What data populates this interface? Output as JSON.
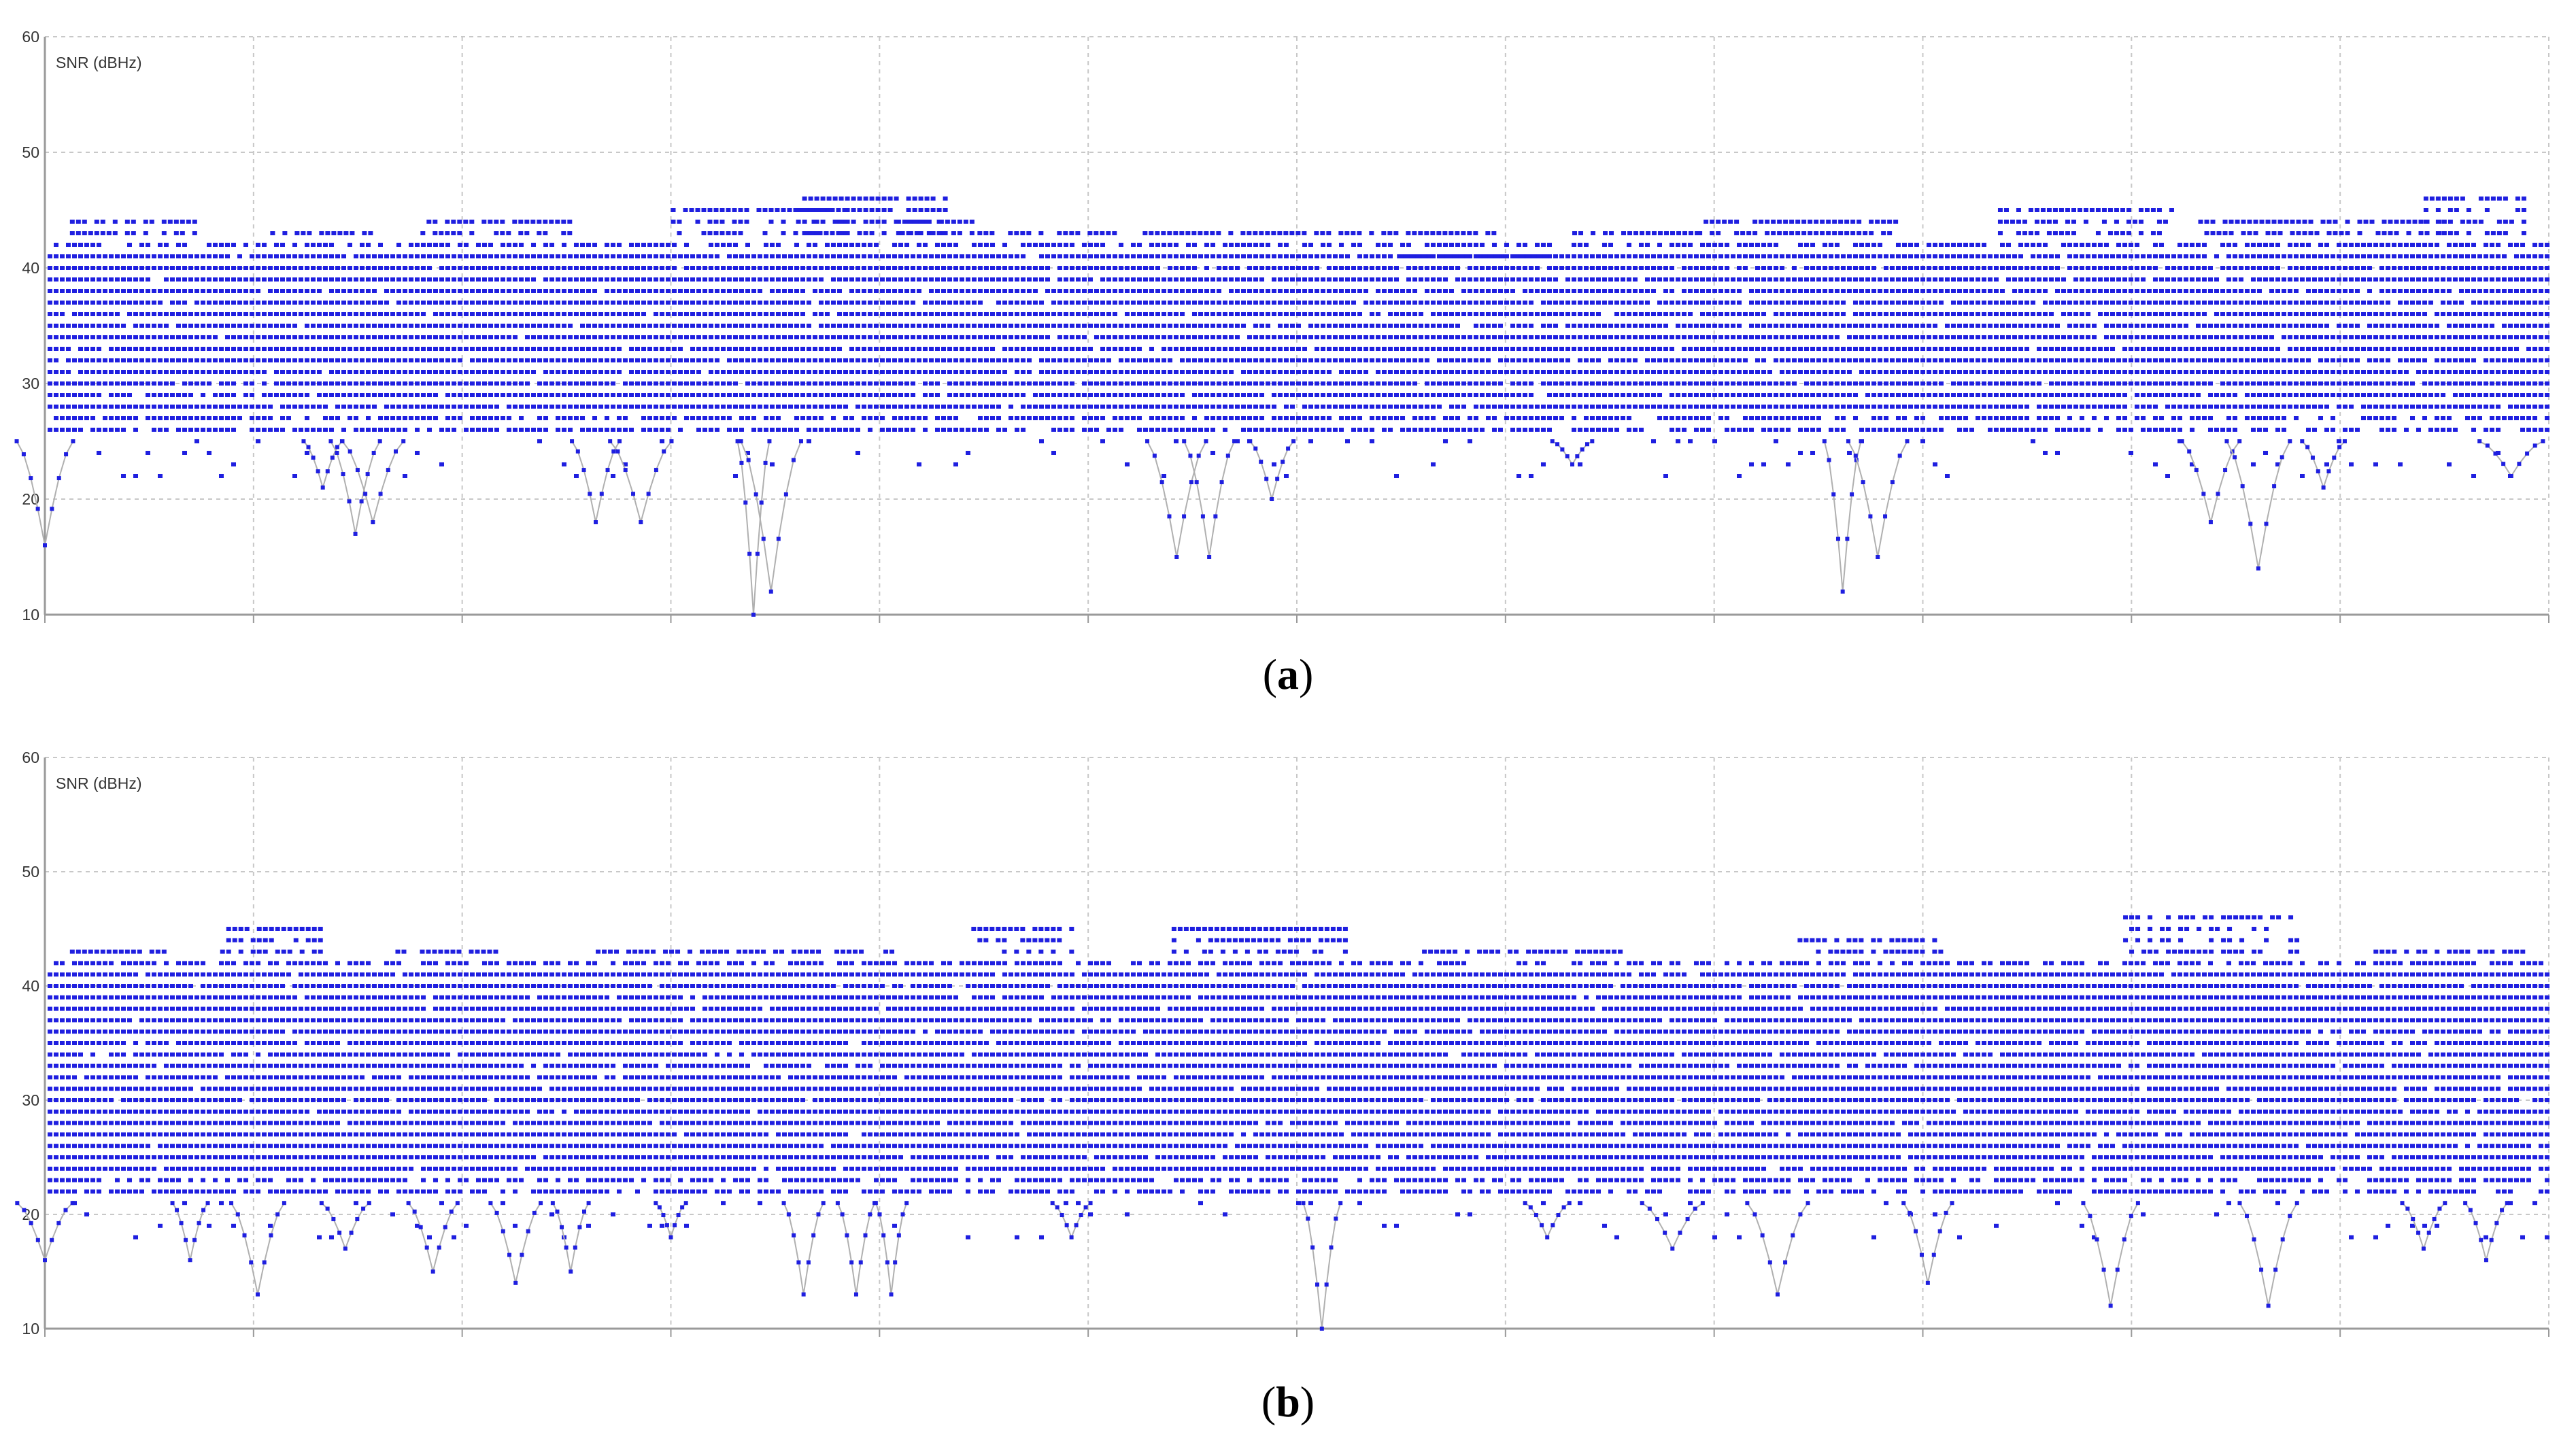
{
  "colors": {
    "points": "#1f1fe0",
    "spikes": "#b0b0b0",
    "grid": "#c8c8c8",
    "axis": "#9a9a9a"
  },
  "chart_data": [
    {
      "type": "scatter",
      "title": "",
      "panel_label": "a",
      "ylabel": "SNR (dBHz)",
      "xlabel": "",
      "ylim": [
        10,
        60
      ],
      "yticks": [
        10,
        20,
        30,
        40,
        50,
        60
      ],
      "x_gridlines": 12,
      "grid": true,
      "series": [
        {
          "band_min": 26,
          "band_max": 42,
          "upper_segments": [
            [
              0.01,
              0.06,
              44
            ],
            [
              0.09,
              0.13,
              43
            ],
            [
              0.15,
              0.21,
              44
            ],
            [
              0.25,
              0.32,
              45
            ],
            [
              0.34,
              0.37,
              44
            ],
            [
              0.37,
              0.58,
              43
            ],
            [
              0.3,
              0.36,
              46
            ],
            [
              0.61,
              0.66,
              43
            ],
            [
              0.66,
              0.74,
              44
            ],
            [
              0.78,
              0.85,
              45
            ],
            [
              0.86,
              0.96,
              44
            ],
            [
              0.95,
              0.99,
              46
            ],
            [
              0.54,
              0.6,
              41
            ]
          ],
          "dips": [
            [
              0.111,
              21
            ],
            [
              0.124,
              17
            ],
            [
              0.131,
              18
            ],
            [
              0.22,
              18
            ],
            [
              0.238,
              18
            ],
            [
              0.283,
              10
            ],
            [
              0.29,
              12
            ],
            [
              0.452,
              15
            ],
            [
              0.465,
              15
            ],
            [
              0.49,
              20
            ],
            [
              0.61,
              23
            ],
            [
              0.718,
              12
            ],
            [
              0.732,
              15
            ],
            [
              0.865,
              18
            ],
            [
              0.884,
              14
            ],
            [
              0.91,
              21
            ],
            [
              0.985,
              22
            ],
            [
              0.0,
              16
            ]
          ]
        }
      ]
    },
    {
      "type": "scatter",
      "title": "",
      "panel_label": "b",
      "ylabel": "SNR (dBHz)",
      "xlabel": "",
      "ylim": [
        10,
        60
      ],
      "yticks": [
        10,
        20,
        30,
        40,
        50,
        60
      ],
      "x_gridlines": 12,
      "grid": true,
      "series": [
        {
          "band_min": 22,
          "band_max": 42,
          "upper_segments": [
            [
              0.07,
              0.11,
              45
            ],
            [
              0.14,
              0.18,
              43
            ],
            [
              0.22,
              0.34,
              43
            ],
            [
              0.37,
              0.41,
              45
            ],
            [
              0.45,
              0.52,
              45
            ],
            [
              0.55,
              0.63,
              43
            ],
            [
              0.7,
              0.76,
              44
            ],
            [
              0.83,
              0.9,
              46
            ],
            [
              0.01,
              0.05,
              43
            ],
            [
              0.93,
              0.99,
              43
            ]
          ],
          "dips": [
            [
              0.0,
              16
            ],
            [
              0.085,
              13
            ],
            [
              0.155,
              15
            ],
            [
              0.188,
              14
            ],
            [
              0.21,
              15
            ],
            [
              0.303,
              13
            ],
            [
              0.324,
              13
            ],
            [
              0.338,
              13
            ],
            [
              0.51,
              10
            ],
            [
              0.692,
              13
            ],
            [
              0.752,
              14
            ],
            [
              0.825,
              12
            ],
            [
              0.888,
              12
            ],
            [
              0.975,
              16
            ],
            [
              0.058,
              16
            ],
            [
              0.12,
              17
            ],
            [
              0.25,
              18
            ],
            [
              0.41,
              18
            ],
            [
              0.6,
              18
            ],
            [
              0.65,
              17
            ],
            [
              0.95,
              17
            ]
          ]
        }
      ]
    }
  ],
  "captions": [
    "a",
    "b"
  ]
}
